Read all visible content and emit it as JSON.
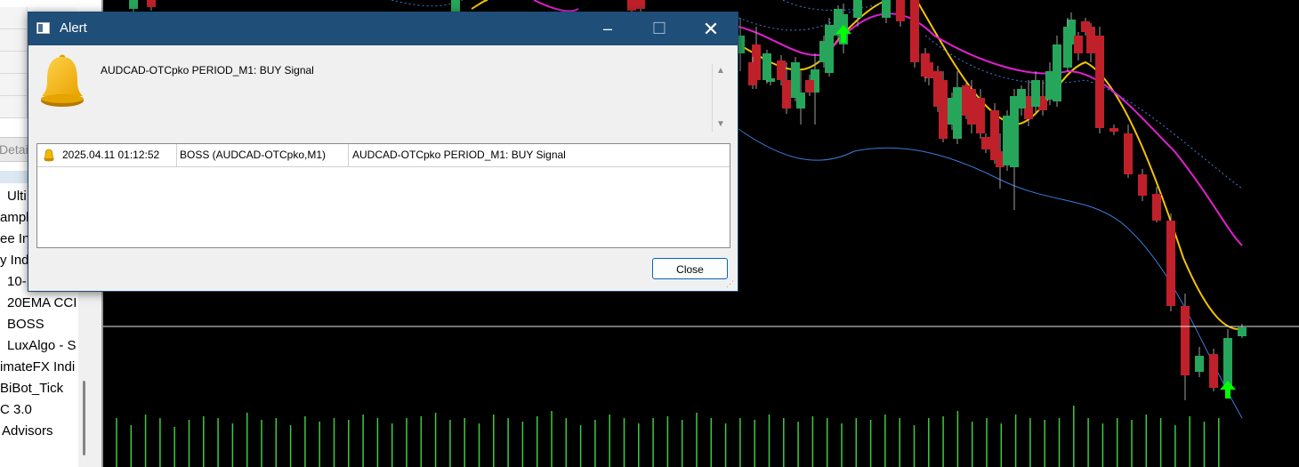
{
  "navigator": {
    "details_tab": "Detai",
    "items": [
      {
        "label": "Ulti",
        "indent": 8
      },
      {
        "label": "ampl",
        "indent": 0
      },
      {
        "label": "ee Ind",
        "indent": 0
      },
      {
        "label": "y Indi",
        "indent": 0
      },
      {
        "label": "10-",
        "indent": 8
      },
      {
        "label": "20EMA CCI",
        "indent": 8
      },
      {
        "label": "BOSS",
        "indent": 8
      },
      {
        "label": "LuxAlgo - S",
        "indent": 8
      },
      {
        "label": "imateFX Indi",
        "indent": 0
      },
      {
        "label": "BiBot_Tick",
        "indent": 0
      },
      {
        "label": "C 3.0",
        "indent": 0
      },
      {
        "label": "Advisors",
        "indent": 2
      }
    ]
  },
  "dialog": {
    "title": "Alert",
    "message": "AUDCAD-OTCpko PERIOD_M1: BUY Signal",
    "alerts": [
      {
        "time": "2025.04.11 01:12:52",
        "source": "BOSS (AUDCAD-OTCpko,M1)",
        "text": "AUDCAD-OTCpko PERIOD_M1: BUY Signal"
      }
    ],
    "close_label": "Close",
    "window_controls": {
      "minimize": "–",
      "maximize": "☐",
      "close": "✕"
    }
  },
  "chart": {
    "colors": {
      "background": "#000000",
      "bull": "#26a65b",
      "bear": "#c0202a",
      "ma_fast": "#f5c400",
      "ma_slow": "#e020d0",
      "band": "#3b7dd8",
      "volume": "#3dcc3d",
      "buy_arrow": "#00ff00",
      "price_line": "#e8e8e8"
    },
    "icons": {
      "buy_arrow": "buy-arrow-icon"
    }
  }
}
